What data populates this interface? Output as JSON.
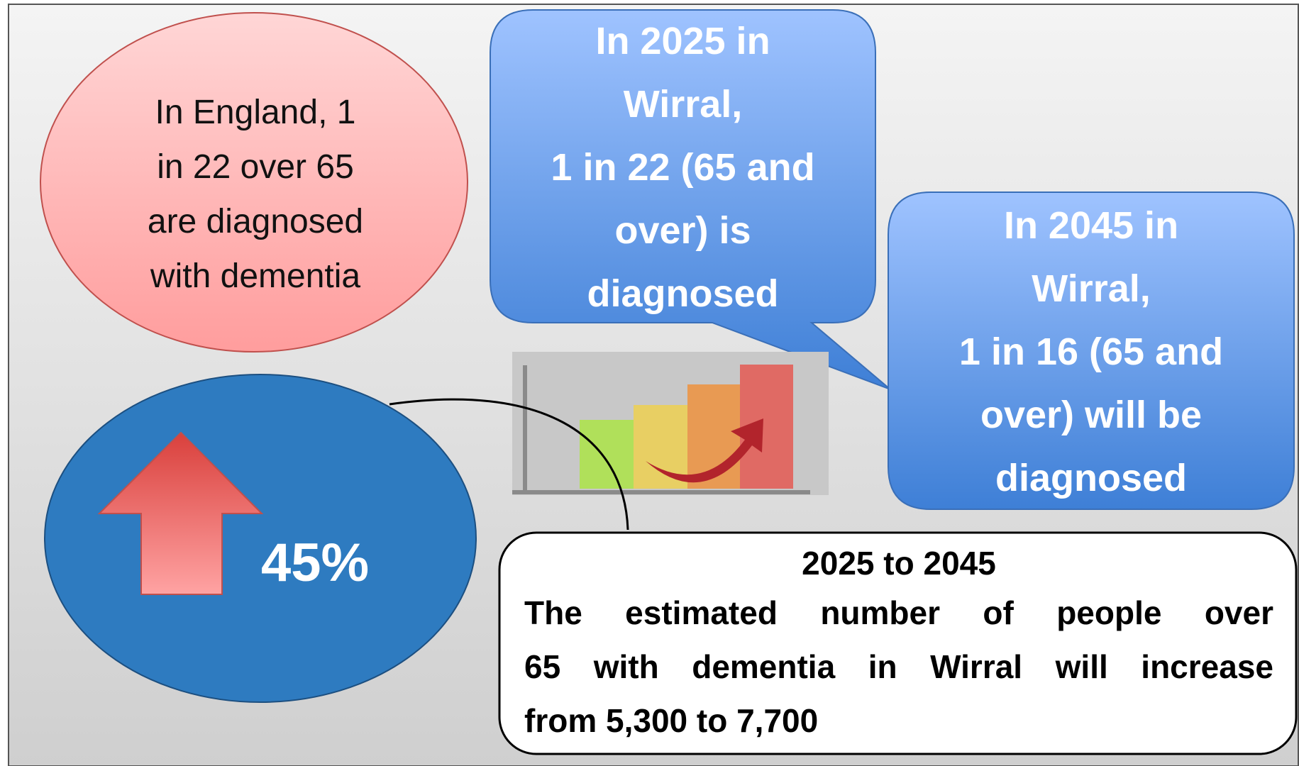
{
  "england_bubble": {
    "lines": [
      "In England, 1",
      "in 22 over 65",
      "are diagnosed",
      "with dementia"
    ]
  },
  "callout_2025": {
    "lines": [
      "In 2025 in",
      "Wirral,",
      "1 in 22 (65 and",
      "over) is",
      "diagnosed"
    ]
  },
  "callout_2045": {
    "lines": [
      "In 2045 in",
      "Wirral,",
      "1 in 16 (65 and",
      "over) will be",
      "diagnosed"
    ]
  },
  "increase_bubble": {
    "label": "45%"
  },
  "summary_box": {
    "title": "2025 to 2045",
    "lines": [
      "The estimated number of people over",
      "65 with dementia in Wirral will increase",
      "from 5,300 to 7,700"
    ]
  }
}
